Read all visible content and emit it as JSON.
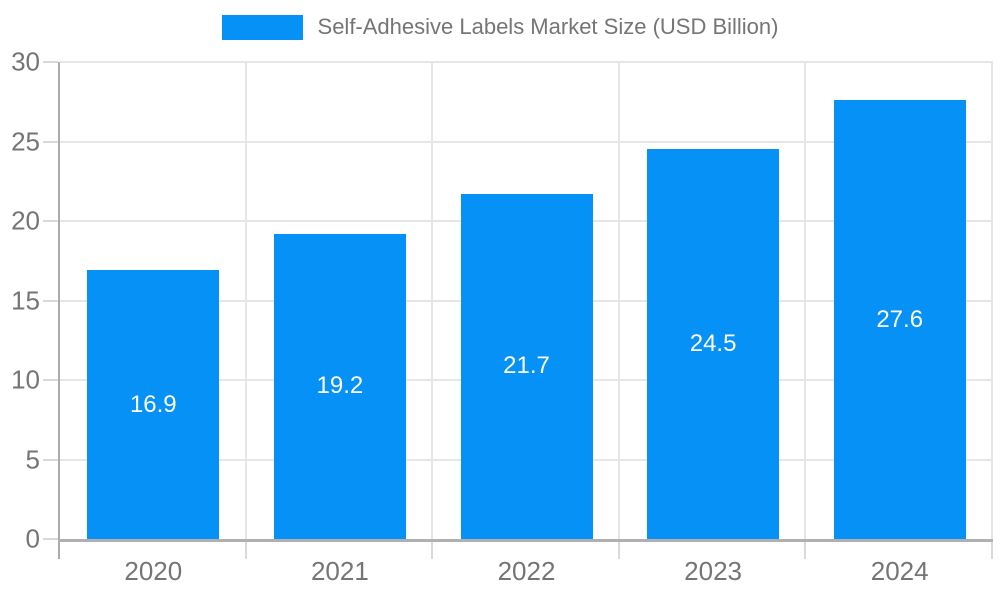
{
  "chart_data": {
    "type": "bar",
    "title": "Self-Adhesive Labels Market Size (USD Billion)",
    "categories": [
      "2020",
      "2021",
      "2022",
      "2023",
      "2024"
    ],
    "series": [
      {
        "name": "Self-Adhesive Labels Market Size (USD Billion)",
        "values": [
          16.9,
          19.2,
          21.7,
          24.5,
          27.6
        ]
      }
    ],
    "data_labels": [
      "16.9",
      "19.2",
      "21.7",
      "24.5",
      "27.6"
    ],
    "xlabel": "",
    "ylabel": "",
    "ylim": [
      0,
      30
    ],
    "yticks": [
      0,
      5,
      10,
      15,
      20,
      25,
      30
    ],
    "grid": true,
    "legend_position": "top",
    "colors": {
      "bar": "#0591f5",
      "bar_label_text": "#ffffff",
      "axis_text": "#757575",
      "legend_text": "#757575",
      "gridline": "#e6e6e6",
      "axis_line": "#ababab"
    }
  },
  "legend": {
    "label": "Self-Adhesive Labels Market Size (USD Billion)"
  }
}
